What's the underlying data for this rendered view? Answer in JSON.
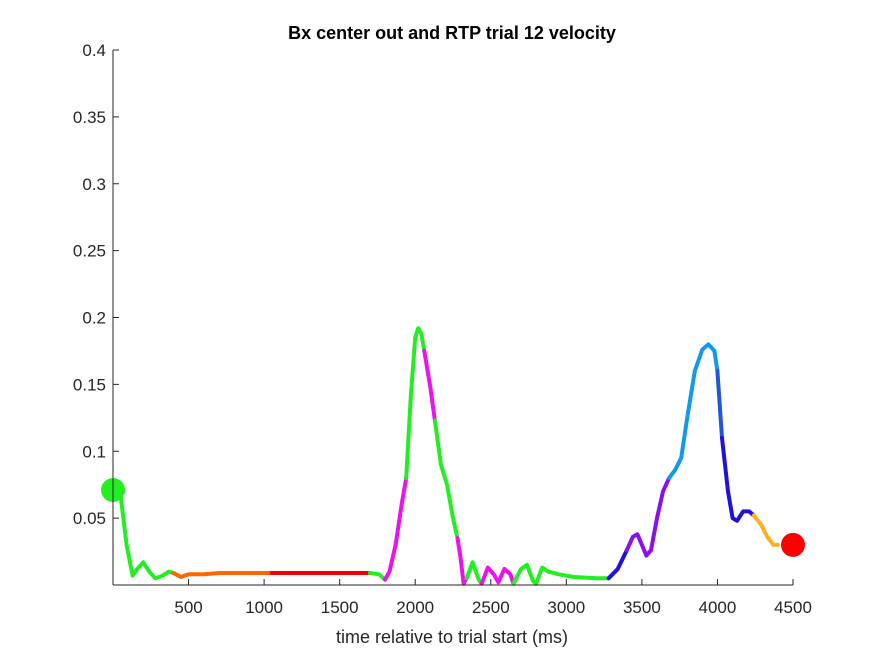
{
  "chart_data": {
    "type": "line",
    "title": "Bx  center out and RTP trial 12 velocity",
    "xlabel": "time relative to trial start (ms)",
    "ylabel": "",
    "xlim": [
      0,
      4500
    ],
    "ylim": [
      0,
      0.4
    ],
    "xticks": [
      500,
      1000,
      1500,
      2000,
      2500,
      3000,
      3500,
      4000,
      4500
    ],
    "xtick_labels": [
      "500",
      "1000",
      "1500",
      "2000",
      "2500",
      "3000",
      "3500",
      "4000",
      "4500"
    ],
    "yticks": [
      0.05,
      0.1,
      0.15,
      0.2,
      0.25,
      0.3,
      0.35,
      0.4
    ],
    "ytick_labels": [
      "0.05",
      "0.1",
      "0.15",
      "0.2",
      "0.25",
      "0.3",
      "0.35",
      "0.4"
    ],
    "grid": false,
    "segments": [
      {
        "color": "#22EE22",
        "points": [
          [
            0,
            0.071
          ],
          [
            50,
            0.067
          ],
          [
            90,
            0.03
          ],
          [
            130,
            0.007
          ],
          [
            160,
            0.012
          ],
          [
            200,
            0.017
          ],
          [
            240,
            0.01
          ],
          [
            280,
            0.005
          ],
          [
            330,
            0.007
          ],
          [
            370,
            0.01
          ],
          [
            400,
            0.009
          ]
        ]
      },
      {
        "color": "#FF6600",
        "points": [
          [
            400,
            0.009
          ],
          [
            450,
            0.006
          ],
          [
            500,
            0.008
          ],
          [
            600,
            0.008
          ],
          [
            700,
            0.009
          ],
          [
            800,
            0.009
          ],
          [
            900,
            0.009
          ],
          [
            1000,
            0.009
          ],
          [
            1050,
            0.009
          ]
        ]
      },
      {
        "color": "#EE0000",
        "points": [
          [
            1050,
            0.009
          ],
          [
            1200,
            0.009
          ],
          [
            1400,
            0.009
          ],
          [
            1600,
            0.009
          ],
          [
            1700,
            0.009
          ]
        ]
      },
      {
        "color": "#22EE22",
        "points": [
          [
            1700,
            0.009
          ],
          [
            1760,
            0.008
          ],
          [
            1800,
            0.004
          ]
        ]
      },
      {
        "color": "#EE11EE",
        "points": [
          [
            1800,
            0.004
          ],
          [
            1830,
            0.01
          ],
          [
            1870,
            0.03
          ],
          [
            1910,
            0.06
          ],
          [
            1940,
            0.08
          ]
        ]
      },
      {
        "color": "#22EE22",
        "points": [
          [
            1940,
            0.08
          ],
          [
            1970,
            0.14
          ],
          [
            2000,
            0.185
          ],
          [
            2020,
            0.192
          ],
          [
            2040,
            0.188
          ],
          [
            2060,
            0.175
          ]
        ]
      },
      {
        "color": "#EE11EE",
        "points": [
          [
            2060,
            0.175
          ],
          [
            2100,
            0.148
          ],
          [
            2130,
            0.123
          ]
        ]
      },
      {
        "color": "#22EE22",
        "points": [
          [
            2130,
            0.123
          ],
          [
            2170,
            0.09
          ],
          [
            2210,
            0.075
          ],
          [
            2250,
            0.05
          ],
          [
            2280,
            0.035
          ]
        ]
      },
      {
        "color": "#EE11EE",
        "points": [
          [
            2280,
            0.035
          ],
          [
            2300,
            0.02
          ],
          [
            2320,
            0.001
          ],
          [
            2340,
            0.005
          ]
        ]
      },
      {
        "color": "#22EE22",
        "points": [
          [
            2340,
            0.005
          ],
          [
            2380,
            0.017
          ],
          [
            2420,
            0.004
          ],
          [
            2440,
            0.001
          ]
        ]
      },
      {
        "color": "#EE11EE",
        "points": [
          [
            2440,
            0.001
          ],
          [
            2480,
            0.013
          ],
          [
            2520,
            0.008
          ],
          [
            2550,
            0.002
          ],
          [
            2590,
            0.012
          ],
          [
            2630,
            0.008
          ],
          [
            2650,
            0.001
          ]
        ]
      },
      {
        "color": "#22EE22",
        "points": [
          [
            2650,
            0.001
          ],
          [
            2700,
            0.012
          ],
          [
            2740,
            0.015
          ],
          [
            2780,
            0.003
          ],
          [
            2800,
            0.001
          ],
          [
            2840,
            0.013
          ],
          [
            2880,
            0.01
          ],
          [
            2950,
            0.008
          ],
          [
            3050,
            0.006
          ],
          [
            3200,
            0.005
          ],
          [
            3280,
            0.005
          ]
        ]
      },
      {
        "color": "#2211DD",
        "points": [
          [
            3280,
            0.005
          ],
          [
            3340,
            0.012
          ],
          [
            3400,
            0.026
          ]
        ]
      },
      {
        "color": "#8811EE",
        "points": [
          [
            3400,
            0.026
          ],
          [
            3440,
            0.036
          ],
          [
            3470,
            0.038
          ],
          [
            3500,
            0.03
          ],
          [
            3530,
            0.022
          ],
          [
            3560,
            0.026
          ],
          [
            3600,
            0.05
          ],
          [
            3640,
            0.07
          ],
          [
            3680,
            0.08
          ]
        ]
      },
      {
        "color": "#1199EE",
        "points": [
          [
            3680,
            0.08
          ],
          [
            3720,
            0.086
          ],
          [
            3760,
            0.095
          ],
          [
            3800,
            0.125
          ],
          [
            3850,
            0.16
          ],
          [
            3900,
            0.176
          ],
          [
            3940,
            0.18
          ],
          [
            3980,
            0.175
          ],
          [
            4000,
            0.16
          ]
        ]
      },
      {
        "color": "#2255DD",
        "points": [
          [
            4000,
            0.16
          ],
          [
            4030,
            0.11
          ]
        ]
      },
      {
        "color": "#2211DD",
        "points": [
          [
            4030,
            0.11
          ],
          [
            4070,
            0.07
          ],
          [
            4100,
            0.05
          ],
          [
            4130,
            0.048
          ],
          [
            4170,
            0.055
          ],
          [
            4210,
            0.055
          ],
          [
            4240,
            0.052
          ]
        ]
      },
      {
        "color": "#FFB020",
        "points": [
          [
            4240,
            0.052
          ],
          [
            4290,
            0.045
          ],
          [
            4330,
            0.036
          ],
          [
            4370,
            0.03
          ],
          [
            4400,
            0.03
          ]
        ]
      }
    ],
    "markers": [
      {
        "name": "start",
        "x": 0,
        "y": 0.071,
        "color": "#22EE22"
      },
      {
        "name": "end",
        "x": 4500,
        "y": 0.03,
        "color": "#FF0000"
      }
    ]
  }
}
